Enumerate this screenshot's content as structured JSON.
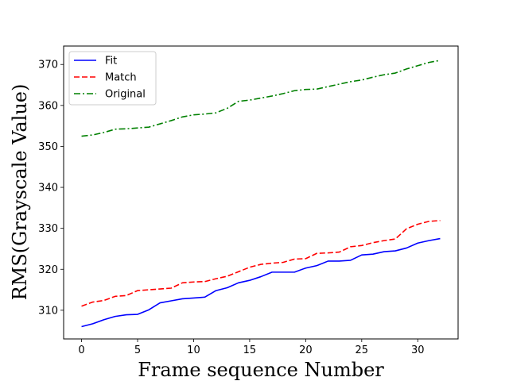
{
  "chart_data": {
    "type": "line",
    "xlabel": "Frame sequence Number",
    "ylabel": "RMS(Grayscale Value)",
    "xlim": [
      -1.6,
      33.6
    ],
    "ylim": [
      303.0,
      374.5
    ],
    "xticks": [
      0,
      5,
      10,
      15,
      20,
      25,
      30
    ],
    "yticks": [
      310,
      320,
      330,
      340,
      350,
      360,
      370
    ],
    "grid": false,
    "legend_position": "top-left",
    "x": [
      0,
      1,
      2,
      3,
      4,
      5,
      6,
      7,
      8,
      9,
      10,
      11,
      12,
      13,
      14,
      15,
      16,
      17,
      18,
      19,
      20,
      21,
      22,
      23,
      24,
      25,
      26,
      27,
      28,
      29,
      30,
      31,
      32
    ],
    "series": [
      {
        "name": "Fit",
        "color": "#0000ff",
        "linestyle": "solid",
        "values": [
          306.0,
          306.7,
          307.7,
          308.5,
          308.9,
          309.0,
          310.1,
          311.8,
          312.3,
          312.8,
          313.0,
          313.2,
          314.8,
          315.5,
          316.7,
          317.3,
          318.2,
          319.3,
          319.3,
          319.3,
          320.3,
          320.9,
          322.0,
          322.0,
          322.2,
          323.5,
          323.7,
          324.3,
          324.5,
          325.2,
          326.4,
          327.0,
          327.5
        ]
      },
      {
        "name": "Match",
        "color": "#ff0000",
        "linestyle": "dashed",
        "values": [
          311.0,
          312.0,
          312.4,
          313.4,
          313.6,
          314.8,
          315.0,
          315.2,
          315.4,
          316.7,
          316.9,
          317.0,
          317.7,
          318.3,
          319.4,
          320.5,
          321.2,
          321.5,
          321.7,
          322.5,
          322.6,
          323.9,
          324.0,
          324.2,
          325.5,
          325.8,
          326.5,
          327.0,
          327.4,
          329.9,
          331.0,
          331.7,
          331.9
        ]
      },
      {
        "name": "Original",
        "color": "#008000",
        "linestyle": "dashdot",
        "values": [
          352.5,
          352.8,
          353.4,
          354.2,
          354.3,
          354.5,
          354.7,
          355.5,
          356.3,
          357.2,
          357.7,
          357.9,
          358.2,
          359.3,
          361.0,
          361.3,
          361.8,
          362.3,
          362.9,
          363.6,
          363.9,
          364.0,
          364.6,
          365.2,
          365.8,
          366.2,
          366.9,
          367.5,
          367.9,
          368.9,
          369.7,
          370.5,
          371.0
        ]
      }
    ]
  }
}
